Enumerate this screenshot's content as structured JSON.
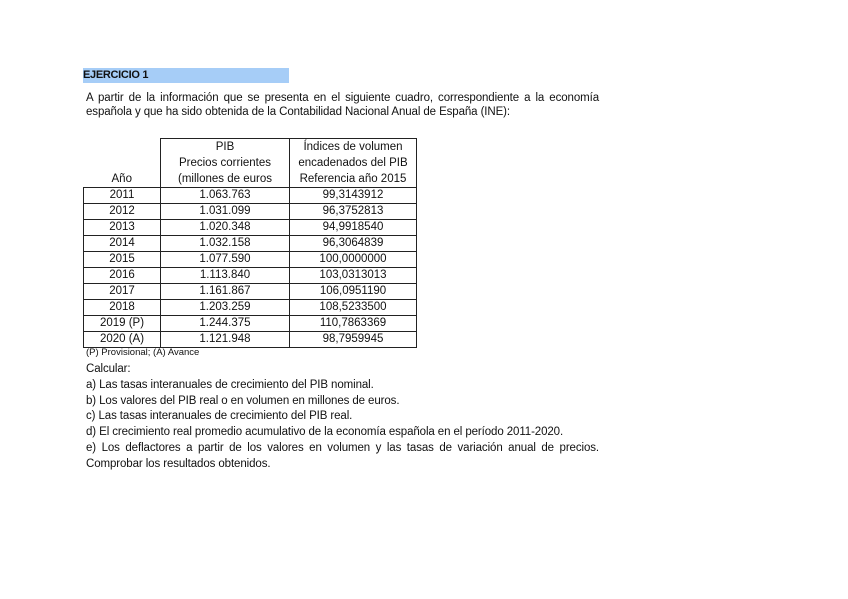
{
  "exercise_title": "EJERCICIO 1",
  "intro": "A partir de la información que se presenta en el siguiente cuadro, correspondiente a la economía española y que ha sido obtenida de la Contabilidad Nacional Anual de España (INE):",
  "table": {
    "headers": {
      "year": "Año",
      "pib_lines": [
        "PIB",
        "Precios corrientes",
        "(millones de euros"
      ],
      "index_lines": [
        "Índices de volumen",
        "encadenados del PIB",
        "Referencia año 2015"
      ]
    },
    "rows": [
      [
        "2011",
        "1.063.763",
        "99,3143912"
      ],
      [
        "2012",
        "1.031.099",
        "96,3752813"
      ],
      [
        "2013",
        "1.020.348",
        "94,9918540"
      ],
      [
        "2014",
        "1.032.158",
        "96,3064839"
      ],
      [
        "2015",
        "1.077.590",
        "100,0000000"
      ],
      [
        "2016",
        "1.113.840",
        "103,0313013"
      ],
      [
        "2017",
        "1.161.867",
        "106,0951190"
      ],
      [
        "2018",
        "1.203.259",
        "108,5233500"
      ],
      [
        "2019 (P)",
        "1.244.375",
        "110,7863369"
      ],
      [
        "2020 (A)",
        "1.121.948",
        "98,7959945"
      ]
    ]
  },
  "note": "(P) Provisional; (A) Avance",
  "calc_label": "Calcular:",
  "tasks": [
    "a) Las tasas interanuales de crecimiento del PIB nominal.",
    "b) Los valores del PIB real o en volumen en millones de euros.",
    "c) Las tasas interanuales de crecimiento del PIB real.",
    "d) El crecimiento real promedio acumulativo de la economía española en el período 2011-2020.",
    "e) Los deflactores a partir de los valores en volumen y las tasas de variación anual de precios. Comprobar los resultados obtenidos."
  ],
  "colors": {
    "title_highlight": "#a6cdf7"
  }
}
